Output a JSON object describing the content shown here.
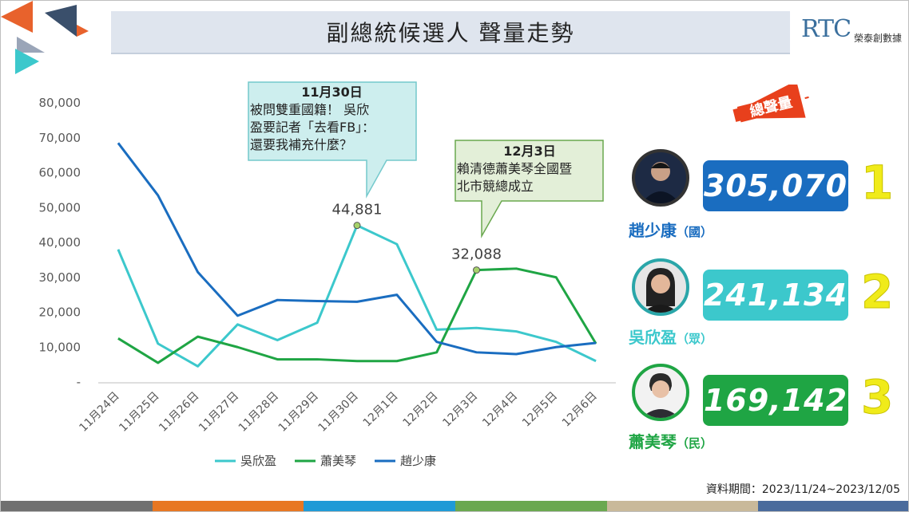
{
  "title": "副總統候選人 聲量走勢",
  "logo": {
    "mark": "RTC",
    "name": "榮泰創數據"
  },
  "chart_data": {
    "type": "line",
    "categories": [
      "11月24日",
      "11月25日",
      "11月26日",
      "11月27日",
      "11月28日",
      "11月29日",
      "11月30日",
      "12月1日",
      "12月2日",
      "12月3日",
      "12月4日",
      "12月5日",
      "12月6日"
    ],
    "y_ticks": [
      "80,000",
      "70,000",
      "60,000",
      "50,000",
      "40,000",
      "30,000",
      "20,000",
      "10,000",
      "-"
    ],
    "ylim": [
      0,
      80000
    ],
    "series": [
      {
        "name": "吳欣盈",
        "color": "#3cc8cc",
        "values": [
          38000,
          11000,
          4500,
          16500,
          12000,
          17000,
          44881,
          39500,
          15000,
          15500,
          14500,
          11500,
          6000
        ]
      },
      {
        "name": "蕭美琴",
        "color": "#1fa544",
        "values": [
          12500,
          5500,
          13000,
          10000,
          6500,
          6500,
          6000,
          6000,
          8500,
          32088,
          32500,
          30000,
          11000
        ]
      },
      {
        "name": "趙少康",
        "color": "#1a6dc0",
        "values": [
          68500,
          53500,
          31500,
          19000,
          23500,
          23200,
          23000,
          25000,
          11500,
          8500,
          8000,
          10000,
          11200
        ]
      }
    ],
    "data_labels": [
      {
        "text": "44,881",
        "series": 0,
        "index": 6
      },
      {
        "text": "32,088",
        "series": 1,
        "index": 9
      }
    ],
    "legend_position": "bottom"
  },
  "callouts": [
    {
      "date": "11月30日",
      "text": [
        "被問雙重國籍！ 吳欣",
        "盈要記者「去看FB」：",
        "還要我補充什麼？"
      ]
    },
    {
      "date": "12月3日",
      "text": [
        "賴清德蕭美琴全國暨",
        "北市競總成立"
      ]
    }
  ],
  "badge_label": "總聲量",
  "candidates": [
    {
      "name": "趙少康",
      "party": "（國）",
      "total": "305,070",
      "rank": "1",
      "color": "#1a6dc0"
    },
    {
      "name": "吳欣盈",
      "party": "（眾）",
      "total": "241,134",
      "rank": "2",
      "color": "#3cc8cc"
    },
    {
      "name": "蕭美琴",
      "party": "（民）",
      "total": "169,142",
      "rank": "3",
      "color": "#1fa544"
    }
  ],
  "footer_note": "資料期間：2023/11/24~2023/12/05",
  "footer_colors": [
    "#707070",
    "#e87722",
    "#1f9ad6",
    "#6aa84f",
    "#c9b99a",
    "#4a6b9c"
  ]
}
